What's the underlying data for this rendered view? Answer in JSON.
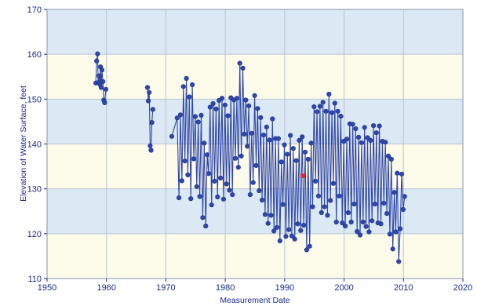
{
  "chart_data": {
    "type": "line",
    "title": "",
    "xlabel": "Measurement Date",
    "ylabel": "Elevation of Water Surface, feet",
    "xlim": [
      1950,
      2020
    ],
    "ylim": [
      110,
      170
    ],
    "x_ticks": [
      1950,
      1960,
      1970,
      1980,
      1990,
      2000,
      2010,
      2020
    ],
    "y_ticks": [
      110,
      120,
      130,
      140,
      150,
      160,
      170
    ],
    "x_tick_labels": [
      "1950",
      "1960",
      "1970",
      "1980",
      "1990",
      "2000",
      "2010",
      "2020"
    ],
    "y_tick_labels": [
      "110",
      "120",
      "130",
      "140",
      "150",
      "160",
      "170"
    ],
    "grid": true,
    "legend": "none",
    "colors": {
      "band_blue": "#dbe9f5",
      "band_cream": "#fdfbea",
      "series": "#2f47a8",
      "marker_edge": "#1e3390",
      "highlight": "#e2222a",
      "grid": "#b9c4d2",
      "axis": "#1a2a8a"
    },
    "series": [
      {
        "x": [
          1958.2,
          1958.35,
          1958.5,
          1958.6,
          1958.75,
          1958.9,
          1959.0,
          1959.1,
          1959.25,
          1959.4,
          1959.55,
          1959.7,
          1959.9
        ],
        "y": [
          153.6,
          158.5,
          160.1,
          153.7,
          155.2,
          153.3,
          157.2,
          152.6,
          156.5,
          153.9,
          149.8,
          149.2,
          152.2
        ]
      },
      {
        "x": [
          1966.9,
          1967.05,
          1967.2,
          1967.35,
          1967.5,
          1967.65,
          1967.8
        ],
        "y": [
          152.6,
          149.6,
          151.5,
          139.6,
          138.6,
          144.8,
          147.7
        ]
      },
      {
        "x": [
          1971.0,
          1971.9,
          1972.2,
          1972.45,
          1972.7,
          1972.95,
          1973.2,
          1973.45,
          1973.7,
          1973.95,
          1974.2,
          1974.45,
          1974.7,
          1974.95,
          1975.2,
          1975.45,
          1975.7,
          1975.95,
          1976.2,
          1976.45,
          1976.7,
          1976.95,
          1977.2,
          1977.45,
          1977.7,
          1977.95,
          1978.2,
          1978.45,
          1978.7,
          1978.95,
          1979.2,
          1979.45,
          1979.7,
          1979.95,
          1980.2,
          1980.45,
          1980.7,
          1980.95,
          1981.2,
          1981.45,
          1981.7,
          1981.95,
          1982.2,
          1982.45,
          1982.7,
          1982.95,
          1983.2,
          1983.45,
          1983.7,
          1983.95,
          1984.2,
          1984.45,
          1984.7,
          1984.95,
          1985.2,
          1985.45,
          1985.7,
          1985.95,
          1986.2,
          1986.45,
          1986.7,
          1986.95,
          1987.2,
          1987.45,
          1987.7,
          1987.95,
          1988.2,
          1988.45,
          1988.7,
          1988.95,
          1989.2,
          1989.45,
          1989.7,
          1989.95,
          1990.2,
          1990.45,
          1990.7,
          1990.95,
          1991.2,
          1991.45,
          1991.7,
          1991.95,
          1992.2,
          1992.45,
          1992.7,
          1992.95,
          1993.2,
          1993.45,
          1993.7,
          1993.95,
          1994.2,
          1994.45,
          1994.7,
          1994.95,
          1995.2,
          1995.45,
          1995.7,
          1995.95,
          1996.2,
          1996.45,
          1996.7,
          1996.95,
          1997.2,
          1997.45,
          1997.7,
          1997.95,
          1998.2,
          1998.45,
          1998.7,
          1998.95,
          1999.2,
          1999.45,
          1999.7,
          1999.95,
          2000.2,
          2000.45,
          2000.7,
          2000.95,
          2001.2,
          2001.45,
          2001.7,
          2001.95,
          2002.2,
          2002.45,
          2002.7,
          2002.95,
          2003.2,
          2003.45,
          2003.7,
          2003.95,
          2004.2,
          2004.45,
          2004.7,
          2004.95,
          2005.2,
          2005.45,
          2005.7,
          2005.95,
          2006.2,
          2006.45,
          2006.7,
          2006.95,
          2007.2,
          2007.45,
          2007.7,
          2007.95,
          2008.2,
          2008.45,
          2008.7,
          2008.95,
          2009.2,
          2009.45,
          2009.7,
          2009.95,
          2010.2
        ],
        "y": [
          141.7,
          145.8,
          128.0,
          146.5,
          131.8,
          152.8,
          136.2,
          154.6,
          133.1,
          150.5,
          127.8,
          153.2,
          136.7,
          146.1,
          130.5,
          144.9,
          128.3,
          146.4,
          123.6,
          140.2,
          121.7,
          137.6,
          133.4,
          148.2,
          126.4,
          149.0,
          131.7,
          147.8,
          128.2,
          149.7,
          132.4,
          150.2,
          127.7,
          148.7,
          131.1,
          146.3,
          129.7,
          150.3,
          128.7,
          149.8,
          136.8,
          150.2,
          134.8,
          158.0,
          137.3,
          156.9,
          142.2,
          149.8,
          139.5,
          148.5,
          128.7,
          142.4,
          131.4,
          150.8,
          135.2,
          147.9,
          129.6,
          145.9,
          127.5,
          142.0,
          124.3,
          143.8,
          122.3,
          140.9,
          124.1,
          145.6,
          120.6,
          141.2,
          121.4,
          141.2,
          118.4,
          136.0,
          126.5,
          139.8,
          119.4,
          137.7,
          120.9,
          141.9,
          119.5,
          139.0,
          118.8,
          136.3,
          122.2,
          140.8,
          120.7,
          141.6,
          121.9,
          138.2,
          116.4,
          136.6,
          117.2,
          140.2,
          126.0,
          148.3,
          131.7,
          147.2,
          128.4,
          148.4,
          124.7,
          149.3,
          126.0,
          147.3,
          124.1,
          151.1,
          127.4,
          147.0,
          131.2,
          149.1,
          122.6,
          147.3,
          128.4,
          146.2,
          122.4,
          140.6,
          121.7,
          141.1,
          124.7,
          144.5,
          122.6,
          144.4,
          126.6,
          143.4,
          120.5,
          141.5,
          119.7,
          140.3,
          122.6,
          143.7,
          121.6,
          141.4,
          120.4,
          140.8,
          122.9,
          144.1,
          126.6,
          142.5,
          122.4,
          144.0,
          122.2,
          140.6,
          126.8,
          140.4,
          124.5,
          137.3,
          119.9,
          136.6,
          116.6,
          129.2,
          120.4,
          133.5,
          113.8,
          121.1,
          133.3,
          125.4,
          128.3
        ]
      }
    ],
    "highlight_point": {
      "x": 1993.1,
      "y": 132.9
    }
  }
}
